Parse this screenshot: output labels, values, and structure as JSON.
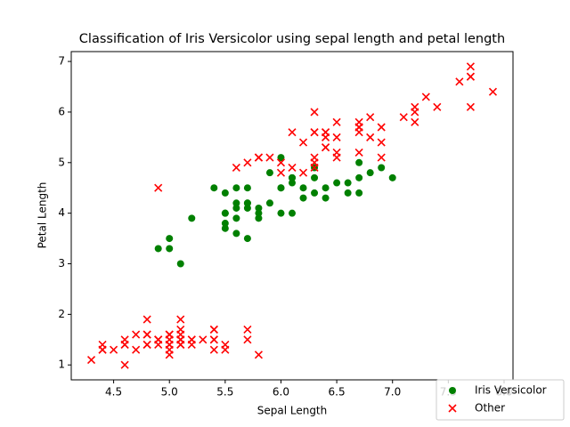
{
  "chart_data": {
    "type": "scatter",
    "title": "Classification of Iris Versicolor using sepal length and petal length",
    "x_label": "Sepal Length",
    "y_label": "Petal Length",
    "xlim": [
      4.12,
      8.08
    ],
    "ylim": [
      0.705,
      7.195
    ],
    "xticks": [
      4.5,
      {
        "value": 5,
        "label": "5.0"
      },
      5.5,
      {
        "value": 6,
        "label": "6.0"
      },
      6.5,
      {
        "value": 7,
        "label": "7.0"
      },
      7.5,
      {
        "value": 8,
        "label": "8.0"
      }
    ],
    "yticks": [
      1,
      2,
      3,
      4,
      5,
      6,
      7
    ],
    "legend": "lower right",
    "series": [
      {
        "name": "Iris Versicolor",
        "color": "green",
        "marker": "circle",
        "x": [
          7.0,
          6.4,
          6.9,
          5.5,
          6.5,
          5.7,
          6.3,
          4.9,
          6.6,
          5.2,
          5.0,
          5.9,
          6.0,
          6.1,
          5.6,
          6.7,
          5.6,
          5.8,
          6.2,
          5.6,
          5.9,
          6.1,
          6.3,
          6.1,
          6.4,
          6.6,
          6.8,
          6.7,
          6.0,
          5.7,
          5.5,
          5.5,
          5.8,
          6.0,
          5.4,
          6.0,
          6.7,
          6.3,
          5.6,
          5.5,
          5.5,
          6.1,
          5.8,
          5.0,
          5.6,
          5.7,
          5.7,
          6.2,
          5.1,
          5.7
        ],
        "values": [
          4.7,
          4.5,
          4.9,
          4.0,
          4.6,
          4.5,
          4.7,
          3.3,
          4.6,
          3.9,
          3.5,
          4.2,
          4.0,
          4.7,
          3.6,
          4.4,
          4.5,
          4.1,
          4.5,
          3.9,
          4.8,
          4.0,
          4.9,
          4.7,
          4.3,
          4.4,
          4.8,
          5.0,
          4.5,
          3.5,
          3.8,
          3.7,
          3.9,
          5.1,
          4.5,
          4.5,
          4.7,
          4.4,
          4.1,
          4.0,
          4.4,
          4.6,
          4.0,
          3.3,
          4.2,
          4.2,
          4.2,
          4.3,
          3.0,
          4.1
        ]
      },
      {
        "name": "Other",
        "color": "red",
        "marker": "x",
        "x": [
          5.1,
          4.9,
          4.7,
          4.6,
          5.0,
          5.4,
          4.6,
          5.0,
          4.4,
          4.9,
          5.4,
          4.8,
          4.8,
          4.3,
          5.8,
          5.7,
          5.4,
          5.1,
          5.7,
          5.1,
          5.4,
          5.1,
          4.6,
          5.1,
          4.8,
          5.0,
          5.0,
          5.2,
          5.2,
          4.7,
          4.8,
          5.4,
          5.2,
          5.5,
          4.9,
          5.0,
          5.5,
          4.9,
          4.4,
          5.1,
          5.0,
          4.5,
          4.4,
          5.0,
          5.1,
          4.8,
          5.1,
          4.6,
          5.3,
          5.0,
          6.3,
          5.8,
          7.1,
          6.3,
          6.5,
          7.6,
          4.9,
          7.3,
          6.7,
          7.2,
          6.5,
          6.4,
          6.8,
          5.7,
          5.8,
          6.4,
          6.5,
          7.7,
          7.7,
          6.0,
          6.9,
          5.6,
          7.7,
          6.3,
          6.7,
          7.2,
          6.2,
          6.1,
          6.4,
          7.2,
          7.4,
          7.9,
          6.4,
          6.3,
          6.1,
          7.7,
          6.3,
          6.4,
          6.0,
          6.9,
          6.7,
          6.9,
          5.8,
          6.8,
          6.7,
          6.7,
          6.3,
          6.5,
          6.2,
          5.9
        ],
        "values": [
          1.4,
          1.4,
          1.3,
          1.5,
          1.4,
          1.7,
          1.4,
          1.5,
          1.4,
          1.5,
          1.5,
          1.6,
          1.4,
          1.1,
          1.2,
          1.5,
          1.3,
          1.4,
          1.7,
          1.5,
          1.7,
          1.5,
          1.0,
          1.7,
          1.9,
          1.6,
          1.6,
          1.5,
          1.4,
          1.6,
          1.6,
          1.5,
          1.5,
          1.4,
          1.5,
          1.2,
          1.3,
          1.5,
          1.3,
          1.5,
          1.3,
          1.3,
          1.3,
          1.6,
          1.9,
          1.4,
          1.6,
          1.4,
          1.5,
          1.4,
          6.0,
          5.1,
          5.9,
          5.6,
          5.8,
          6.6,
          4.5,
          6.3,
          5.8,
          6.1,
          5.1,
          5.3,
          5.5,
          5.0,
          5.1,
          5.3,
          5.5,
          6.7,
          6.9,
          5.0,
          5.7,
          4.9,
          6.7,
          4.9,
          5.7,
          6.0,
          4.8,
          4.9,
          5.6,
          5.8,
          6.1,
          6.4,
          5.6,
          5.1,
          5.6,
          6.1,
          5.6,
          5.5,
          4.8,
          5.4,
          5.6,
          5.1,
          5.1,
          5.9,
          5.7,
          5.2,
          5.0,
          5.2,
          5.4,
          5.1
        ]
      }
    ]
  }
}
